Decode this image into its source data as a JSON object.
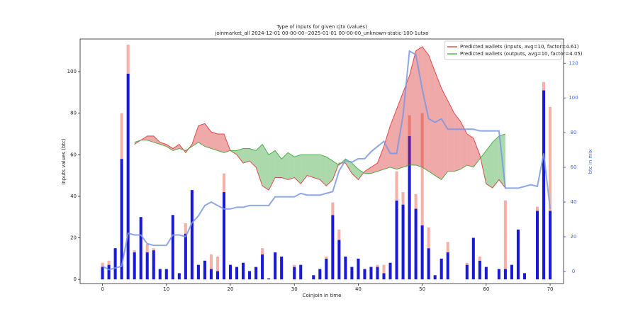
{
  "chart_data": {
    "type": "bar",
    "title": "Type of inputs for given cjtx (values)",
    "subtitle": "joinmarket_all 2024-12-01 00-00-00--2025-01-01 00-00-00_unknown-static-100-1utxo",
    "x_label": "Coinjoin in time",
    "y_label": "Inputs values (btc)",
    "y2_label": "btc in mix",
    "x": [
      0,
      1,
      2,
      3,
      4,
      5,
      6,
      7,
      8,
      9,
      10,
      11,
      12,
      13,
      14,
      15,
      16,
      17,
      18,
      19,
      20,
      21,
      22,
      23,
      24,
      25,
      26,
      27,
      28,
      29,
      30,
      31,
      32,
      33,
      34,
      35,
      36,
      37,
      38,
      39,
      40,
      41,
      42,
      43,
      44,
      45,
      46,
      47,
      48,
      49,
      50,
      51,
      52,
      53,
      54,
      55,
      56,
      57,
      58,
      59,
      60,
      61,
      62,
      63,
      64,
      65,
      66,
      67,
      68,
      69,
      70
    ],
    "series": [
      {
        "type": "bar",
        "color": "#1a1ad6",
        "values": [
          6,
          7,
          15,
          58,
          99,
          13,
          30,
          13,
          14,
          5,
          5,
          31,
          3,
          22,
          43,
          7,
          9,
          5,
          4,
          42,
          7,
          6,
          8,
          4,
          6,
          12,
          0.5,
          13,
          11,
          0,
          6,
          7,
          0,
          2,
          5,
          10,
          31,
          19,
          11,
          6,
          10,
          5,
          6,
          6,
          3,
          8,
          38,
          36,
          69,
          34,
          26,
          15,
          2,
          10,
          13,
          0,
          0,
          7,
          20,
          9,
          6,
          0,
          5,
          5,
          7,
          24,
          3,
          0,
          33,
          91,
          33
        ]
      },
      {
        "type": "bar",
        "color": "#f5b0a8",
        "values": [
          2,
          2,
          0,
          22,
          14,
          1,
          0,
          4,
          1,
          0,
          0,
          0,
          0,
          5,
          0,
          0,
          0,
          7,
          7,
          9,
          0,
          0,
          0,
          0,
          0,
          3,
          0,
          0,
          0,
          0,
          1,
          0,
          0,
          0,
          0,
          1,
          6,
          5,
          0,
          0,
          0,
          0,
          0,
          1,
          4,
          0,
          14,
          6,
          10,
          7,
          54,
          10,
          0,
          0,
          5,
          0,
          0,
          1,
          0,
          2,
          0,
          0,
          0,
          33,
          0,
          0,
          0,
          0,
          2,
          4,
          50
        ]
      },
      {
        "type": "line",
        "name": "Predicted wallets (inputs, avg=10, factor=4.61)",
        "color": "#d62728",
        "values": [
          null,
          null,
          null,
          null,
          null,
          65,
          67,
          69,
          69,
          66,
          65,
          63,
          65,
          61,
          65,
          74,
          75,
          71,
          70,
          70,
          62,
          60,
          56,
          57,
          54,
          45,
          43,
          49,
          49,
          48,
          49,
          46,
          50,
          49,
          48,
          45,
          48,
          56,
          56,
          51,
          48,
          52,
          54,
          56,
          64,
          74,
          82,
          90,
          98,
          110,
          112,
          108,
          100,
          92,
          86,
          80,
          76,
          70,
          68,
          60,
          46,
          44,
          48,
          44,
          null,
          null,
          null,
          null,
          null,
          null,
          null
        ]
      },
      {
        "type": "line",
        "name": "Predicted wallets (outputs, avg=10, factor=4.05)",
        "color": "#2ca02c",
        "values": [
          null,
          null,
          null,
          null,
          null,
          66,
          67,
          67,
          66,
          65,
          64,
          62,
          63,
          62,
          64,
          66,
          64,
          63,
          62,
          61,
          62,
          62,
          63,
          63,
          62,
          65,
          60,
          62,
          58,
          61,
          59,
          60,
          60,
          60,
          60,
          59,
          57,
          55,
          58,
          56,
          53,
          51,
          51,
          52,
          53,
          54,
          53,
          54,
          55,
          55,
          54,
          52,
          50,
          48,
          52,
          52,
          53,
          55,
          54,
          58,
          62,
          66,
          69,
          70,
          null,
          null,
          null,
          null,
          null,
          null,
          null
        ]
      },
      {
        "type": "line",
        "axis": "y2",
        "color": "#7b96e3",
        "values": [
          3,
          1,
          2,
          3,
          22,
          21,
          21,
          16,
          15,
          15,
          15,
          21,
          21,
          20,
          28,
          32,
          38,
          40,
          38,
          36,
          36,
          37,
          37,
          38,
          38,
          38,
          38,
          43,
          43,
          43,
          43,
          45,
          44,
          44,
          44,
          45,
          46,
          58,
          64,
          63,
          65,
          65,
          69,
          72,
          75,
          68,
          68,
          90,
          127,
          125,
          105,
          88,
          86,
          88,
          82,
          82,
          82,
          82,
          82,
          81,
          81,
          81,
          81,
          48,
          48,
          48,
          49,
          50,
          49,
          68,
          36
        ]
      }
    ],
    "xlim": [
      -3.5,
      72.1
    ],
    "xticks": [
      0,
      10,
      20,
      30,
      40,
      50,
      60,
      70
    ],
    "ylim": [
      -2,
      115.7
    ],
    "yticks": [
      0,
      20,
      40,
      60,
      80,
      100
    ],
    "y2lim": [
      -7,
      134
    ],
    "y2ticks": [
      0,
      20,
      40,
      60,
      80,
      100,
      120
    ],
    "y2_color": "#4169e1",
    "legend": "upper right"
  }
}
